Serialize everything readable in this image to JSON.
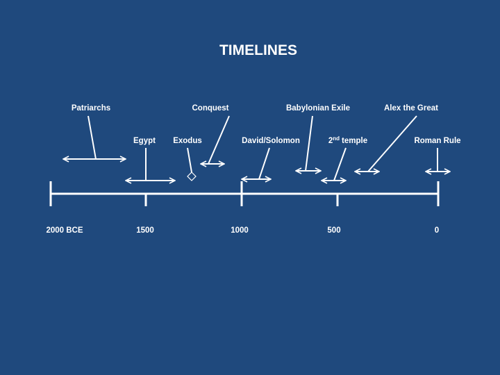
{
  "title": "TIMELINES",
  "axis": {
    "labels": [
      "2000 BCE",
      "1500",
      "1000",
      "500",
      "0"
    ]
  },
  "events": [
    {
      "label": "Patriarchs"
    },
    {
      "label": "Egypt"
    },
    {
      "label": "Exodus"
    },
    {
      "label": "Conquest"
    },
    {
      "label": "David/Solomon"
    },
    {
      "label": "Babylonian Exile"
    },
    {
      "ordinal": "2",
      "suffix": "nd",
      "label": "temple"
    },
    {
      "label": "Alex the Great"
    },
    {
      "label": "Roman Rule"
    }
  ]
}
